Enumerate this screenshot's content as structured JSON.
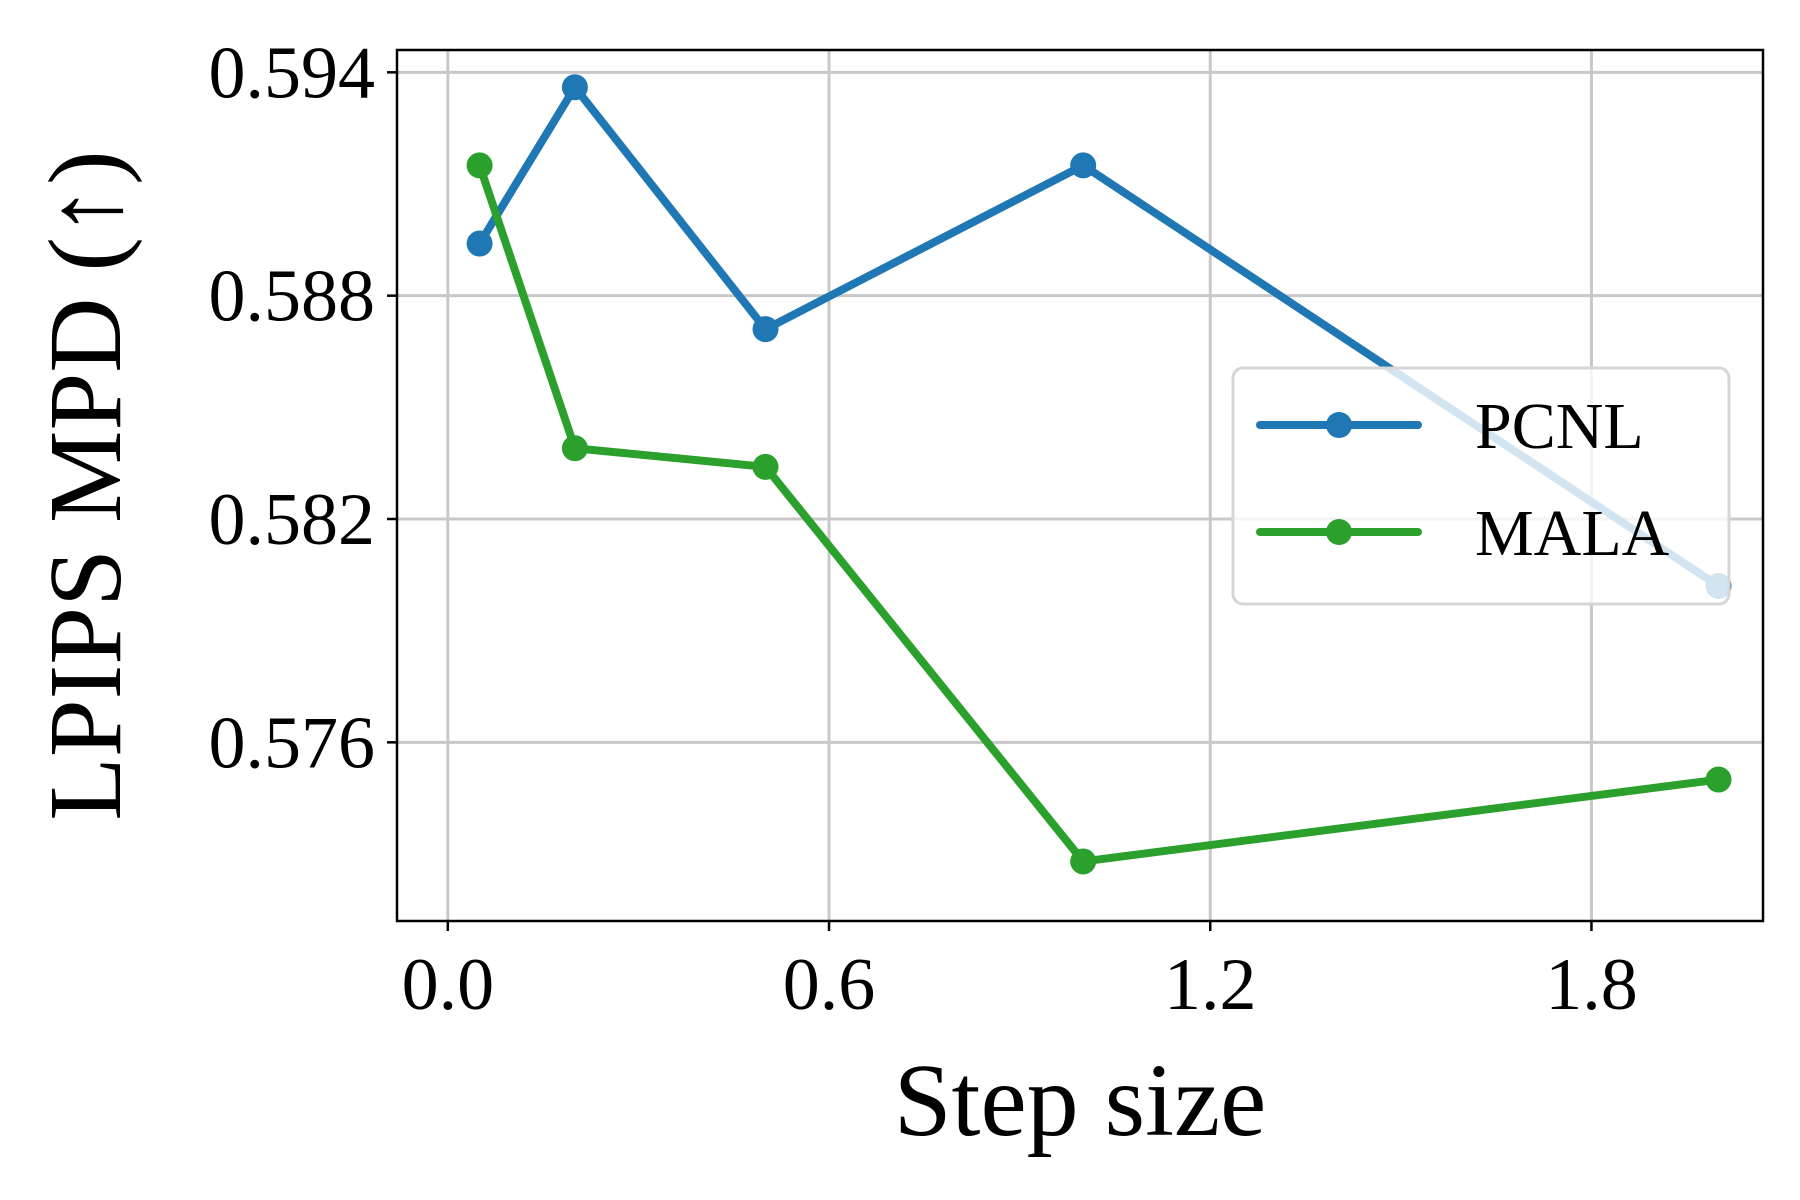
{
  "chart_data": {
    "type": "line",
    "title": "",
    "xlabel": "Step size",
    "ylabel": "LPIPS MPD (↑)",
    "xlim": [
      -0.08,
      2.07
    ],
    "ylim": [
      0.5712,
      0.5946
    ],
    "xticks": [
      0.0,
      0.6,
      1.2,
      1.8
    ],
    "xtick_labels": [
      "0.0",
      "0.6",
      "1.2",
      "1.8"
    ],
    "yticks": [
      0.576,
      0.582,
      0.588,
      0.594
    ],
    "ytick_labels": [
      "0.576",
      "0.582",
      "0.588",
      "0.594"
    ],
    "grid": true,
    "legend_position": "center-right",
    "series": [
      {
        "name": "PCNL",
        "color": "#1f77b4",
        "marker": "circle",
        "x": [
          0.05,
          0.2,
          0.5,
          1.0,
          2.0
        ],
        "y": [
          0.5894,
          0.5936,
          0.5871,
          0.5915,
          0.5802
        ]
      },
      {
        "name": "MALA",
        "color": "#2ca02c",
        "marker": "circle",
        "x": [
          0.05,
          0.2,
          0.5,
          1.0,
          2.0
        ],
        "y": [
          0.5915,
          0.5839,
          0.5834,
          0.5728,
          0.575
        ]
      }
    ]
  }
}
